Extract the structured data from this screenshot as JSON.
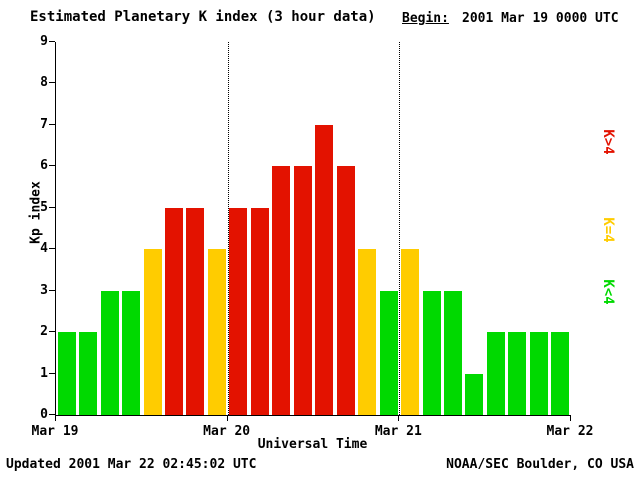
{
  "header": {
    "title": "Estimated Planetary K index (3 hour data)",
    "begin_label": "Begin:",
    "begin_value": "2001 Mar 19 0000 UTC"
  },
  "chart_data": {
    "type": "bar",
    "title": "Estimated Planetary K index (3 hour data)",
    "begin": "2001 Mar 19 0000 UTC",
    "ylabel": "Kp index",
    "xlabel": "Universal Time",
    "ylim": [
      0,
      9
    ],
    "y_ticks": [
      0,
      1,
      2,
      3,
      4,
      5,
      6,
      7,
      8,
      9
    ],
    "x_ticks": [
      "Mar 19",
      "Mar 20",
      "Mar 21",
      "Mar 22"
    ],
    "bars_per_day": 8,
    "interval_hours": 3,
    "values": [
      2,
      2,
      3,
      3,
      4,
      5,
      5,
      4,
      5,
      5,
      6,
      6,
      7,
      6,
      4,
      3,
      4,
      3,
      3,
      1,
      2,
      2,
      2,
      2
    ],
    "color_rule": "green for K<4, yellow for K=4, red for K>4",
    "colors": {
      "low": "#00d900",
      "mid": "#ffcc00",
      "high": "#e31200"
    },
    "grid": "dotted vertical lines at day boundaries",
    "legend": [
      {
        "label": "K>4",
        "color": "#e31200"
      },
      {
        "label": "K=4",
        "color": "#ffcc00"
      },
      {
        "label": "K<4",
        "color": "#00d900"
      }
    ]
  },
  "footer": {
    "updated": "Updated 2001 Mar 22 02:45:02 UTC",
    "source": "NOAA/SEC Boulder, CO USA"
  }
}
